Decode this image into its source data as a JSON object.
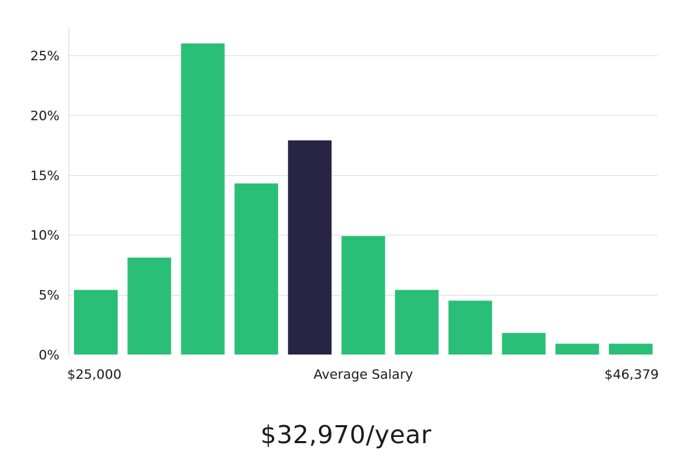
{
  "colors": {
    "bar": "#2abf76",
    "highlight": "#272444",
    "grid": "#dcdcdc"
  },
  "chart_data": {
    "type": "bar",
    "title": "",
    "xlabel": "Average Salary",
    "ylabel": "",
    "x_start_label": "$25,000",
    "x_end_label": "$46,379",
    "ylim": [
      0,
      27.2
    ],
    "y_ticks": [
      0,
      5,
      10,
      15,
      20,
      25
    ],
    "y_tick_labels": [
      "0%",
      "5%",
      "10%",
      "15%",
      "20%",
      "25%"
    ],
    "values": [
      5.4,
      8.1,
      26.0,
      14.3,
      17.9,
      9.9,
      5.4,
      4.5,
      1.8,
      0.9,
      0.9
    ],
    "highlight_index": 4,
    "grid": true
  },
  "caption": {
    "salary": "$32,970/year"
  }
}
